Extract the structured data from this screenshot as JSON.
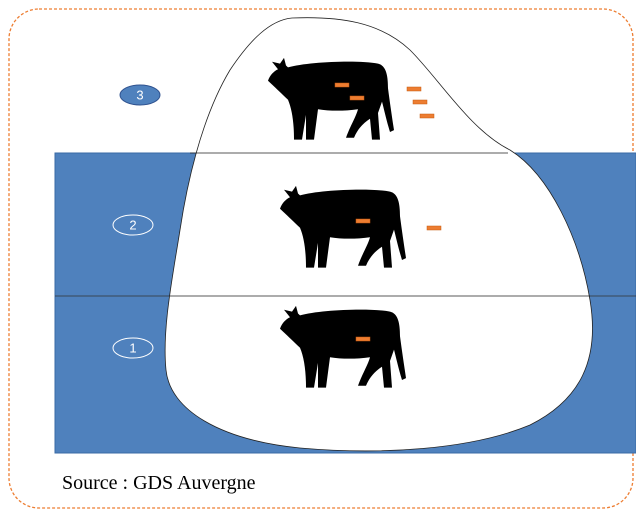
{
  "levels": [
    {
      "label": "3"
    },
    {
      "label": "2"
    },
    {
      "label": "1"
    }
  ],
  "source": "Source : GDS Auvergne"
}
